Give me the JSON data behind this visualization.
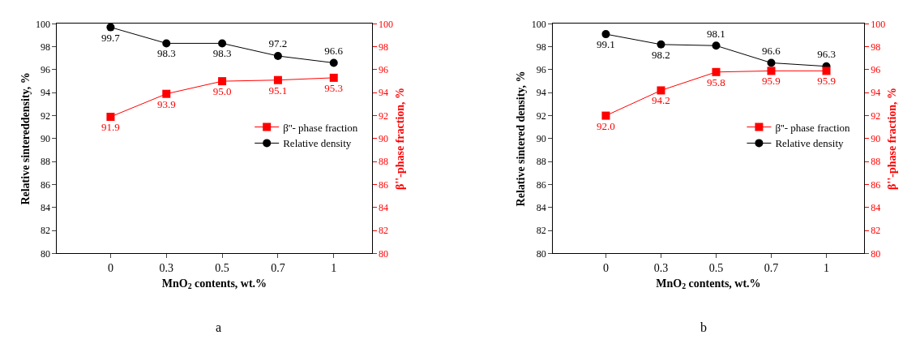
{
  "chart_data": [
    {
      "type": "line",
      "categories": [
        "0",
        "0.3",
        "0.5",
        "0.7",
        "1"
      ],
      "xlabel": "MnO$_{2}$ contents, wt.%",
      "ylabel": "Relative sintereddensity, %",
      "y2label": "β''-phase fraction, %",
      "ylim": [
        80,
        100
      ],
      "yticks": [
        80,
        82,
        84,
        86,
        88,
        90,
        92,
        94,
        96,
        98,
        100
      ],
      "y2lim": [
        80,
        100
      ],
      "y2ticks": [
        80,
        82,
        84,
        86,
        88,
        90,
        92,
        94,
        96,
        98,
        100
      ],
      "data_labels": true,
      "legend": "right",
      "grid": false,
      "annotations": [
        "a"
      ],
      "series": [
        {
          "name": "β''- phase fraction",
          "color": "#ff0000",
          "axis": "y2",
          "marker": "square",
          "values": [
            91.9,
            93.9,
            95.0,
            95.1,
            95.3
          ],
          "value_labels": [
            "91.9",
            "93.9",
            "95.0",
            "95.1",
            "95.3"
          ]
        },
        {
          "name": "Relative density",
          "color": "#000000",
          "axis": "y",
          "marker": "circle",
          "values": [
            99.7,
            98.3,
            98.3,
            97.2,
            96.6
          ],
          "value_labels": [
            "99.7",
            "98.3",
            "98.3",
            "97.2",
            "96.6"
          ]
        }
      ]
    },
    {
      "type": "line",
      "categories": [
        "0",
        "0.3",
        "0.5",
        "0.7",
        "1"
      ],
      "xlabel": "MnO$_{2}$ contents, wt.%",
      "ylabel": "Relative sintered density, %",
      "y2label": "β''-phase fraction, %",
      "ylim": [
        80,
        100
      ],
      "yticks": [
        80,
        82,
        84,
        86,
        88,
        90,
        92,
        94,
        96,
        98,
        100
      ],
      "y2lim": [
        80,
        100
      ],
      "y2ticks": [
        80,
        82,
        84,
        86,
        88,
        90,
        92,
        94,
        96,
        98,
        100
      ],
      "data_labels": true,
      "legend": "right",
      "grid": false,
      "annotations": [
        "b"
      ],
      "series": [
        {
          "name": "β''- phase fraction",
          "color": "#ff0000",
          "axis": "y2",
          "marker": "square",
          "values": [
            92.0,
            94.2,
            95.8,
            95.9,
            95.9
          ],
          "value_labels": [
            "92.0",
            "94.2",
            "95.8",
            "95.9",
            "95.9"
          ]
        },
        {
          "name": "Relative density",
          "color": "#000000",
          "axis": "y",
          "marker": "circle",
          "values": [
            99.1,
            98.2,
            98.1,
            96.6,
            96.3
          ],
          "value_labels": [
            "99.1",
            "98.2",
            "98.1",
            "96.6",
            "96.3"
          ]
        }
      ]
    }
  ]
}
